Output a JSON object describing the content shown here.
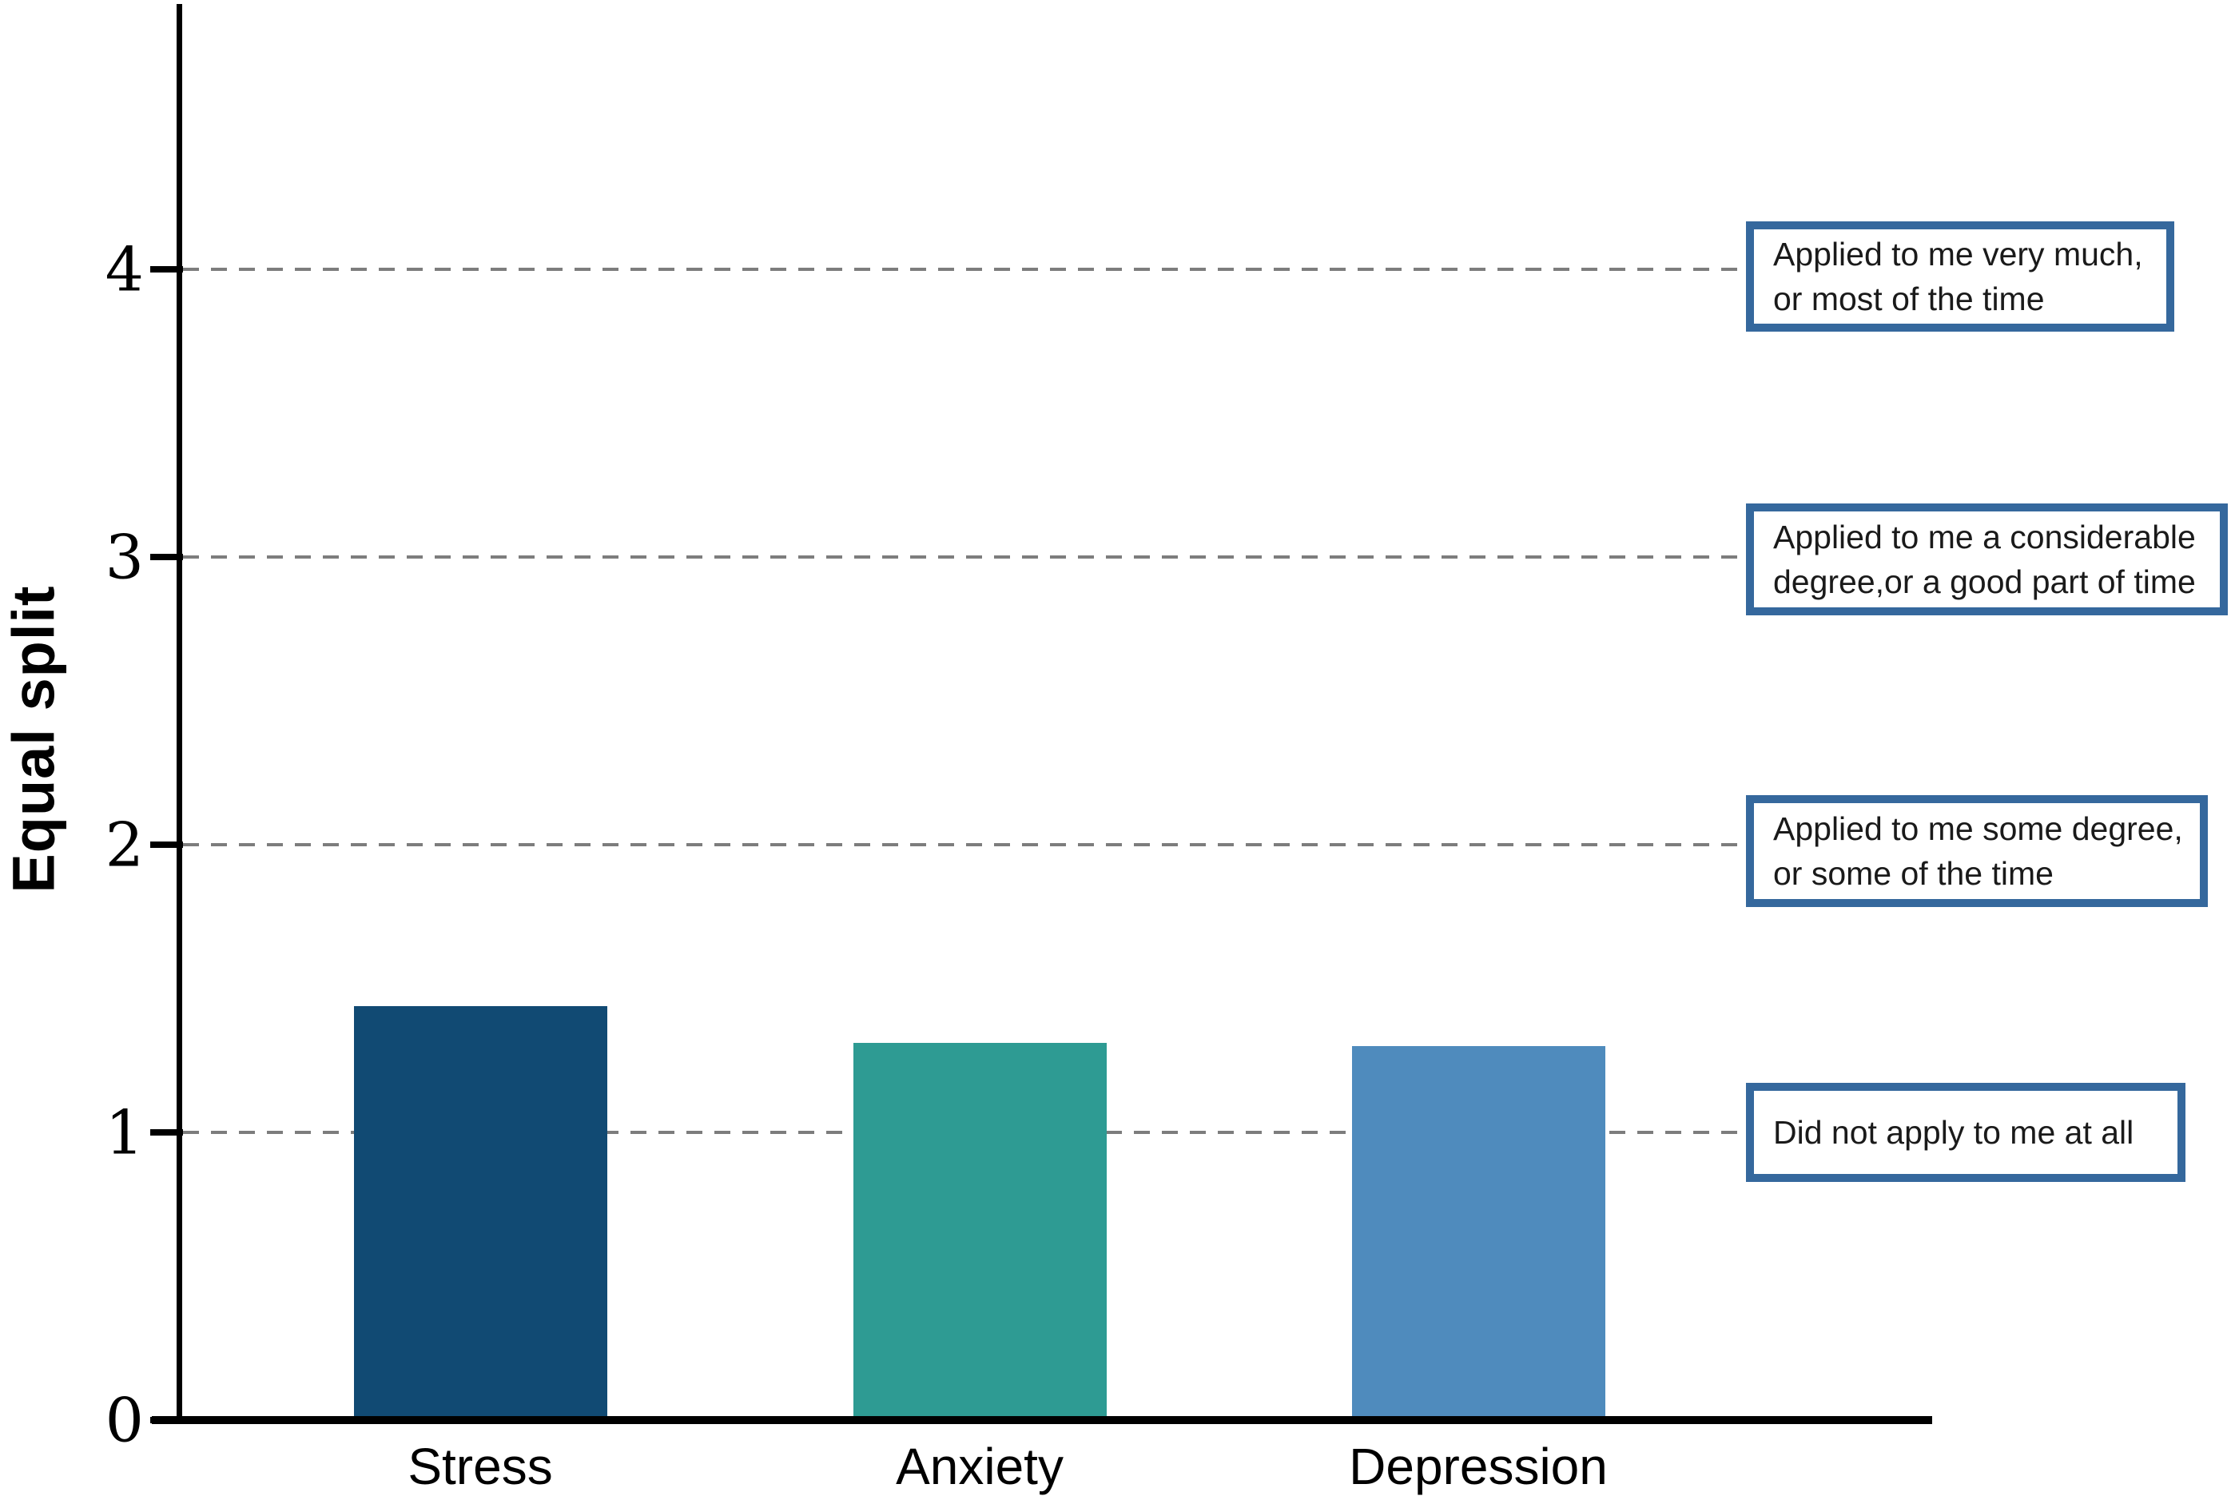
{
  "chart_data": {
    "type": "bar",
    "title": "",
    "xlabel": "",
    "ylabel": "Equal split",
    "categories": [
      "Stress",
      "Anxiety",
      "Depression"
    ],
    "values": [
      1.44,
      1.31,
      1.3
    ],
    "bar_colors": [
      "#114a73",
      "#2e9b93",
      "#4f8bbd"
    ],
    "ylim": [
      0,
      4.9
    ],
    "yticks": [
      0,
      1,
      2,
      3,
      4
    ],
    "grid": "horizontal dashed at y=1,2,3,4",
    "gridline_color": "#7d7d7d",
    "axis_color": "#000000",
    "legend_position": "none",
    "annotations": [
      {
        "value": 4,
        "lines": [
          "Applied to me very much,",
          "or most of the time"
        ]
      },
      {
        "value": 3,
        "lines": [
          "Applied to me a considerable",
          "degree,or a good part of time"
        ]
      },
      {
        "value": 2,
        "lines": [
          "Applied to me some degree,",
          "or some of the time"
        ]
      },
      {
        "value": 1,
        "lines": [
          "Did not apply to me at all"
        ]
      }
    ],
    "annotation_border_color": "#35689d"
  }
}
